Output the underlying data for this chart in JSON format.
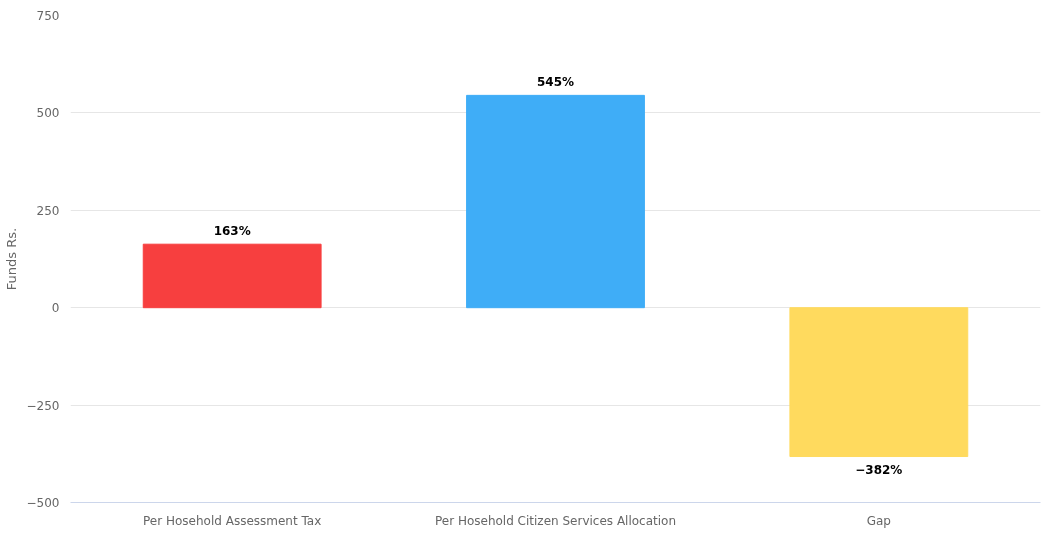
{
  "chart_data": {
    "type": "bar",
    "ylabel": "Funds Rs.",
    "categories": [
      "Per Hosehold Assessment Tax",
      "Per Hosehold Citizen Services Allocation",
      "Gap"
    ],
    "values": [
      163,
      545,
      -382
    ],
    "colors": [
      "#f73f3f",
      "#3fadf7",
      "#ffda5e"
    ],
    "value_labels": [
      "163%",
      "545%",
      "−382%"
    ],
    "ylim": [
      -500,
      750
    ],
    "yticks": [
      -500,
      {
        "value": -250,
        "label": "−250"
      },
      0,
      250,
      500,
      750
    ],
    "grid": "y"
  }
}
